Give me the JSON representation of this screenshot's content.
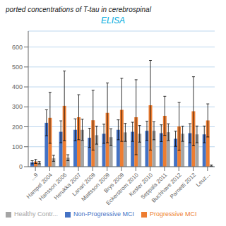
{
  "chart_data": {
    "type": "bar",
    "title": "ported  concentrations of T-tau in cerebrospinal",
    "annotations": [
      "ELISA"
    ],
    "categories": [
      "...9",
      "Hampel 2004",
      "Hansson 2006",
      "Herukka 2007",
      "Lanari 2009",
      "Mattsson 2009",
      "Brys 2009",
      "Eckerstrom 2010",
      "Kester 2010",
      "Seppala 2011",
      "Buchhave 2012",
      "Parnetti 2012",
      "Leuz..."
    ],
    "series": [
      {
        "name": "Non-Progressive MCI",
        "color": "#4472C4",
        "values": [
          22,
          220,
          175,
          185,
          145,
          165,
          185,
          175,
          180,
          168,
          140,
          168,
          162
        ],
        "errors": [
          8,
          65,
          55,
          55,
          48,
          48,
          50,
          48,
          48,
          42,
          38,
          48,
          42
        ]
      },
      {
        "name": "Progressive MCI",
        "color": "#ED7D31",
        "values": [
          26,
          245,
          305,
          248,
          233,
          270,
          285,
          248,
          308,
          255,
          202,
          278,
          232
        ],
        "errors": [
          10,
          128,
          175,
          113,
          150,
          150,
          158,
          188,
          225,
          98,
          120,
          173,
          83
        ]
      },
      {
        "name": "Healthy Contr...",
        "color": "#A5A5A5",
        "values": [
          20,
          42,
          45,
          185,
          158,
          148,
          172,
          165,
          180,
          173,
          165,
          162,
          5
        ],
        "errors": [
          6,
          15,
          15,
          53,
          45,
          42,
          45,
          42,
          45,
          42,
          38,
          42,
          3
        ]
      }
    ],
    "ylim": [
      0,
      680
    ],
    "yticks": [
      0,
      100,
      200,
      300,
      400,
      500,
      600
    ],
    "grid": true,
    "legend": "bottom"
  }
}
